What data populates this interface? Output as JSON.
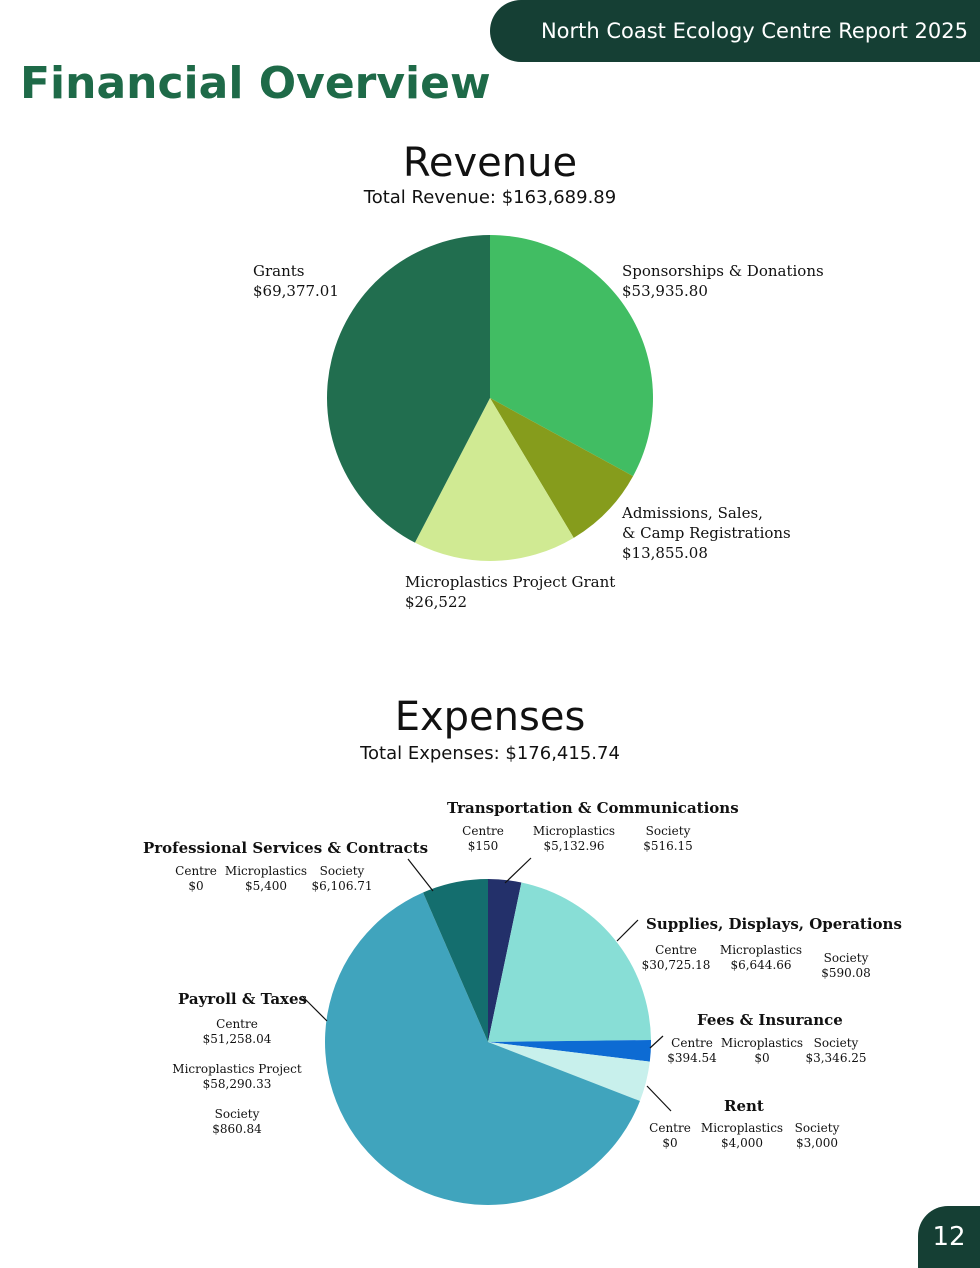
{
  "header": {
    "report_title": "North Coast Ecology Centre Report 2025"
  },
  "page": {
    "title": "Financial Overview",
    "number": "12"
  },
  "chart_data": [
    {
      "type": "pie",
      "title": "Revenue",
      "subtitle": "Total Revenue: $163,689.89",
      "slices": [
        {
          "label": "Sponsorships & Donations",
          "value": 53935.8,
          "value_text": "$53,935.80",
          "color": "#41bd63"
        },
        {
          "label": "Admissions, Sales, & Camp Registrations",
          "label_lines": [
            "Admissions, Sales,",
            "& Camp Registrations"
          ],
          "value": 13855.08,
          "value_text": "$13,855.08",
          "color": "#869c1c"
        },
        {
          "label": "Microplastics Project Grant",
          "value": 26522,
          "value_text": "$26,522",
          "color": "#d0ea93"
        },
        {
          "label": "Grants",
          "value": 69377.01,
          "value_text": "$69,377.01",
          "color": "#216e4f"
        }
      ]
    },
    {
      "type": "pie",
      "title": "Expenses",
      "subtitle": "Total Expenses: $176,415.74",
      "slices": [
        {
          "label": "Transportation & Communications",
          "color": "#23306a",
          "breakdown": [
            {
              "name": "Centre",
              "value": "$150"
            },
            {
              "name": "Microplastics",
              "value": "$5,132.96"
            },
            {
              "name": "Society",
              "value": "$516.15"
            }
          ]
        },
        {
          "label": "Supplies, Displays, Operations",
          "color": "#88ded6",
          "breakdown": [
            {
              "name": "Centre",
              "value": "$30,725.18"
            },
            {
              "name": "Microplastics",
              "value": "$6,644.66"
            },
            {
              "name": "Society",
              "value": "$590.08"
            }
          ]
        },
        {
          "label": "Fees & Insurance",
          "color": "#0d6bd3",
          "breakdown": [
            {
              "name": "Centre",
              "value": "$394.54"
            },
            {
              "name": "Microplastics",
              "value": "$0"
            },
            {
              "name": "Society",
              "value": "$3,346.25"
            }
          ]
        },
        {
          "label": "Rent",
          "color": "#c8f0ec",
          "breakdown": [
            {
              "name": "Centre",
              "value": "$0"
            },
            {
              "name": "Microplastics",
              "value": "$4,000"
            },
            {
              "name": "Society",
              "value": "$3,000"
            }
          ]
        },
        {
          "label": "Payroll & Taxes",
          "color": "#40a4bd",
          "breakdown": [
            {
              "name": "Centre",
              "value": "$51,258.04"
            },
            {
              "name": "Microplastics Project",
              "value": "$58,290.33"
            },
            {
              "name": "Society",
              "value": "$860.84"
            }
          ]
        },
        {
          "label": "Professional Services & Contracts",
          "color": "#146e6e",
          "breakdown": [
            {
              "name": "Centre",
              "value": "$0"
            },
            {
              "name": "Microplastics",
              "value": "$5,400"
            },
            {
              "name": "Society",
              "value": "$6,106.71"
            }
          ]
        }
      ]
    }
  ]
}
